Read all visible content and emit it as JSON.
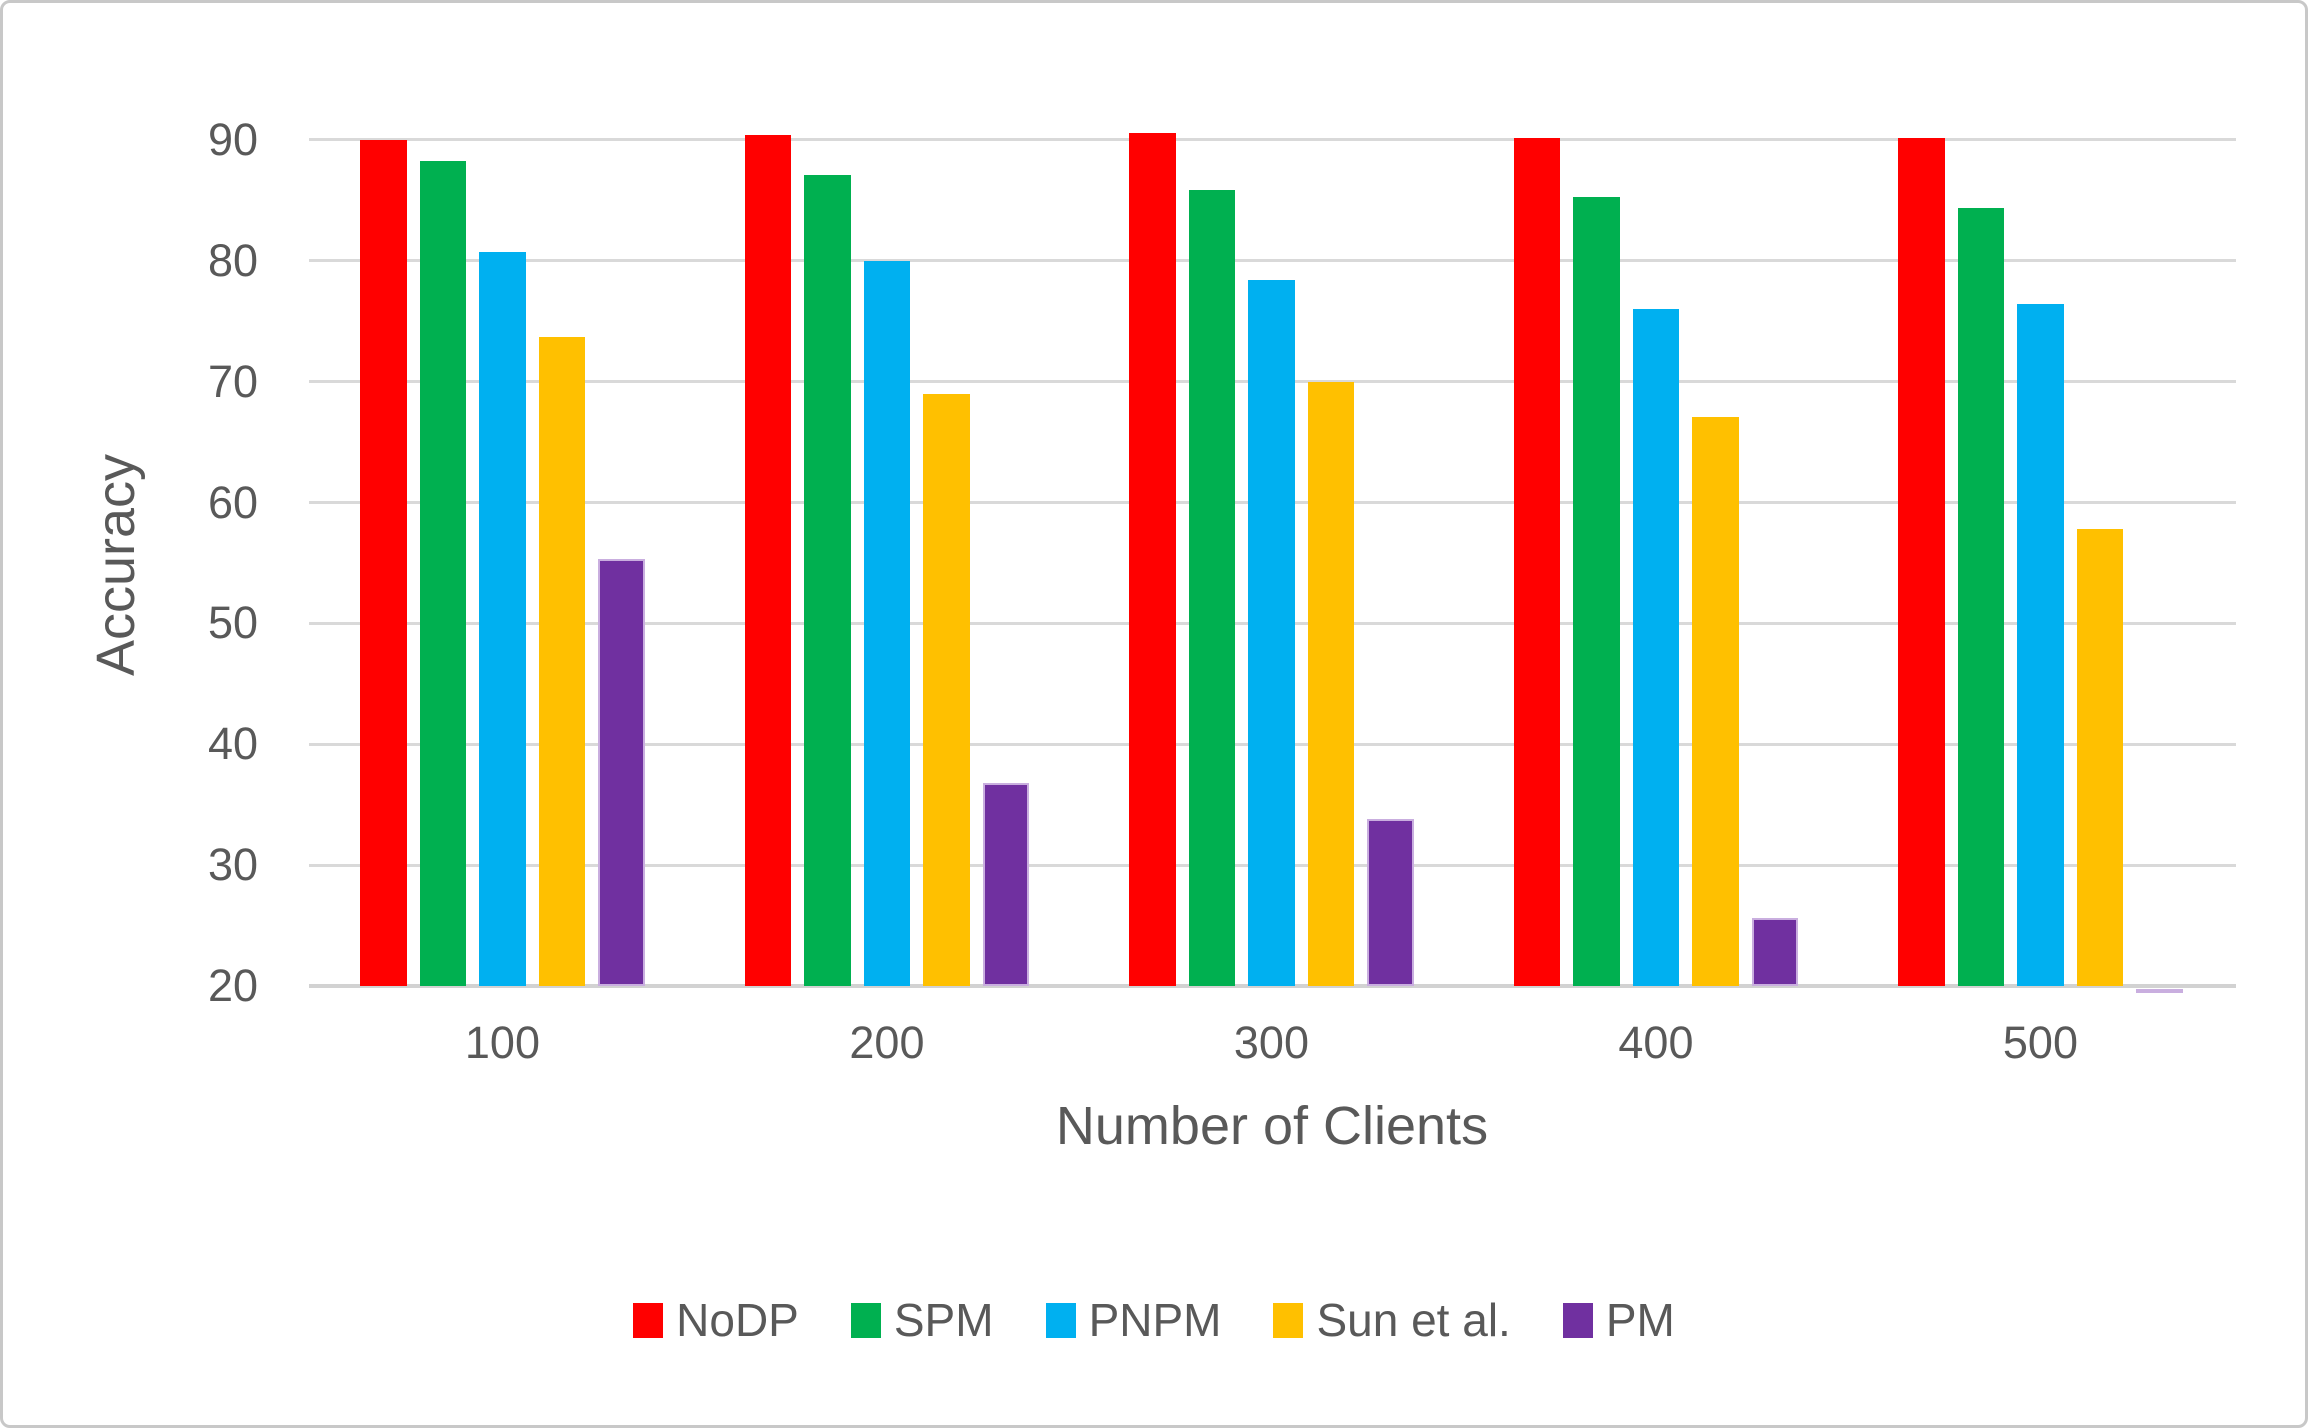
{
  "chart_data": {
    "type": "bar",
    "title": "",
    "xlabel": "Number of Clients",
    "ylabel": "Accuracy",
    "categories": [
      "100",
      "200",
      "300",
      "400",
      "500"
    ],
    "series": [
      {
        "name": "NoDP",
        "color": "#FF0000",
        "values": [
          90.0,
          90.4,
          90.6,
          90.2,
          90.2
        ]
      },
      {
        "name": "SPM",
        "color": "#00B050",
        "values": [
          88.3,
          87.1,
          85.9,
          85.3,
          84.4
        ]
      },
      {
        "name": "PNPM",
        "color": "#00B0F0",
        "values": [
          80.7,
          80.0,
          78.4,
          76.0,
          76.4
        ]
      },
      {
        "name": "Sun et al.",
        "color": "#FFC000",
        "values": [
          73.7,
          69.0,
          70.0,
          67.1,
          57.8
        ]
      },
      {
        "name": "PM",
        "color": "#7030A0",
        "border_color": "#c9aedf",
        "values": [
          55.3,
          36.8,
          33.8,
          25.6,
          19.8
        ]
      }
    ],
    "ylim": [
      20,
      90
    ],
    "yticks": [
      20,
      30,
      40,
      50,
      60,
      70,
      80,
      90
    ],
    "grid": true,
    "legend_position": "bottom",
    "colors": {
      "gridline": "#d9d9d9",
      "axis_text": "#595959",
      "background": "#ffffff",
      "figure_border": "#c8c8c8"
    }
  }
}
